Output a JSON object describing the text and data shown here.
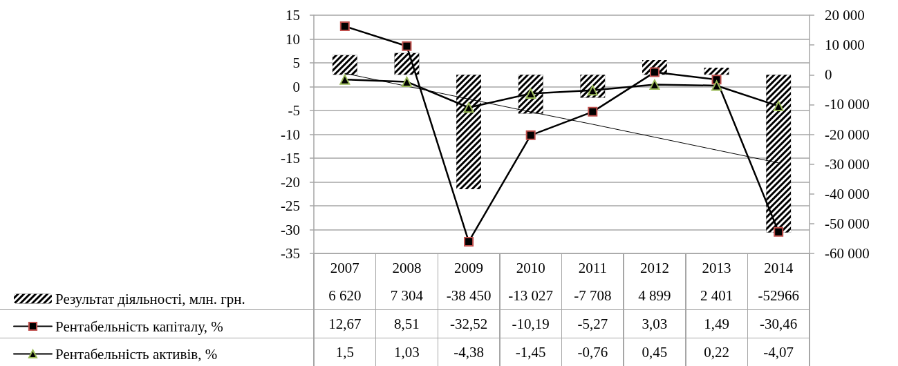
{
  "chart_data": {
    "type": "bar",
    "categories": [
      "2007",
      "2008",
      "2009",
      "2010",
      "2011",
      "2012",
      "2013",
      "2014"
    ],
    "series": [
      {
        "name": "Результат діяльності, млн. грн.",
        "color": "#000000",
        "axis": "y2",
        "values": [
          6620,
          7304,
          -38450,
          -13027,
          -7708,
          4899,
          2401,
          -52966
        ],
        "value_labels": [
          "6 620",
          "7 304",
          "-38 450",
          "-13 027",
          "-7 708",
          "4 899",
          "2 401",
          "-52966"
        ]
      },
      {
        "type": "line",
        "name": "Рентабельність капіталу, %",
        "color": "#000000",
        "marker": "square",
        "values": [
          12.67,
          8.51,
          -32.52,
          -10.19,
          -5.27,
          3.03,
          1.49,
          -30.46
        ],
        "value_labels": [
          "12,67",
          "8,51",
          "-32,52",
          "-10,19",
          "-5,27",
          "3,03",
          "1,49",
          "-30,46"
        ]
      },
      {
        "type": "line",
        "name": "Рентабельність активів, %",
        "color": "#000000",
        "marker": "triangle",
        "values": [
          1.5,
          1.03,
          -4.38,
          -1.45,
          -0.76,
          0.45,
          0.22,
          -4.07
        ],
        "value_labels": [
          "1,5",
          "1,03",
          "-4,38",
          "-1,45",
          "-0,76",
          "0,45",
          "0,22",
          "-4,07"
        ]
      },
      {
        "type": "line",
        "color": "#000000",
        "marker": "none",
        "values": [
          2.8,
          0.1,
          -2.6,
          -5.3,
          -7.9,
          -10.6,
          -13.3,
          -16.0
        ]
      }
    ],
    "ylim": [
      -35,
      15
    ],
    "yticks": [
      -35,
      -30,
      -25,
      -20,
      -15,
      -10,
      -5,
      0,
      5,
      10,
      15
    ],
    "y2lim": [
      -60000,
      20000
    ],
    "y2ticks": [
      {
        "value": -60000,
        "label": "-60 000"
      },
      {
        "value": -50000,
        "label": "-50 000"
      },
      {
        "value": -40000,
        "label": "-40 000"
      },
      {
        "value": -30000,
        "label": "-30 000"
      },
      {
        "value": -20000,
        "label": "-20 000"
      },
      {
        "value": -10000,
        "label": "-10 000"
      },
      0,
      {
        "value": 10000,
        "label": "10 000"
      },
      {
        "value": 20000,
        "label": "20 000"
      }
    ],
    "grid": "y",
    "legend": "bottom left",
    "line_style": "solid"
  }
}
